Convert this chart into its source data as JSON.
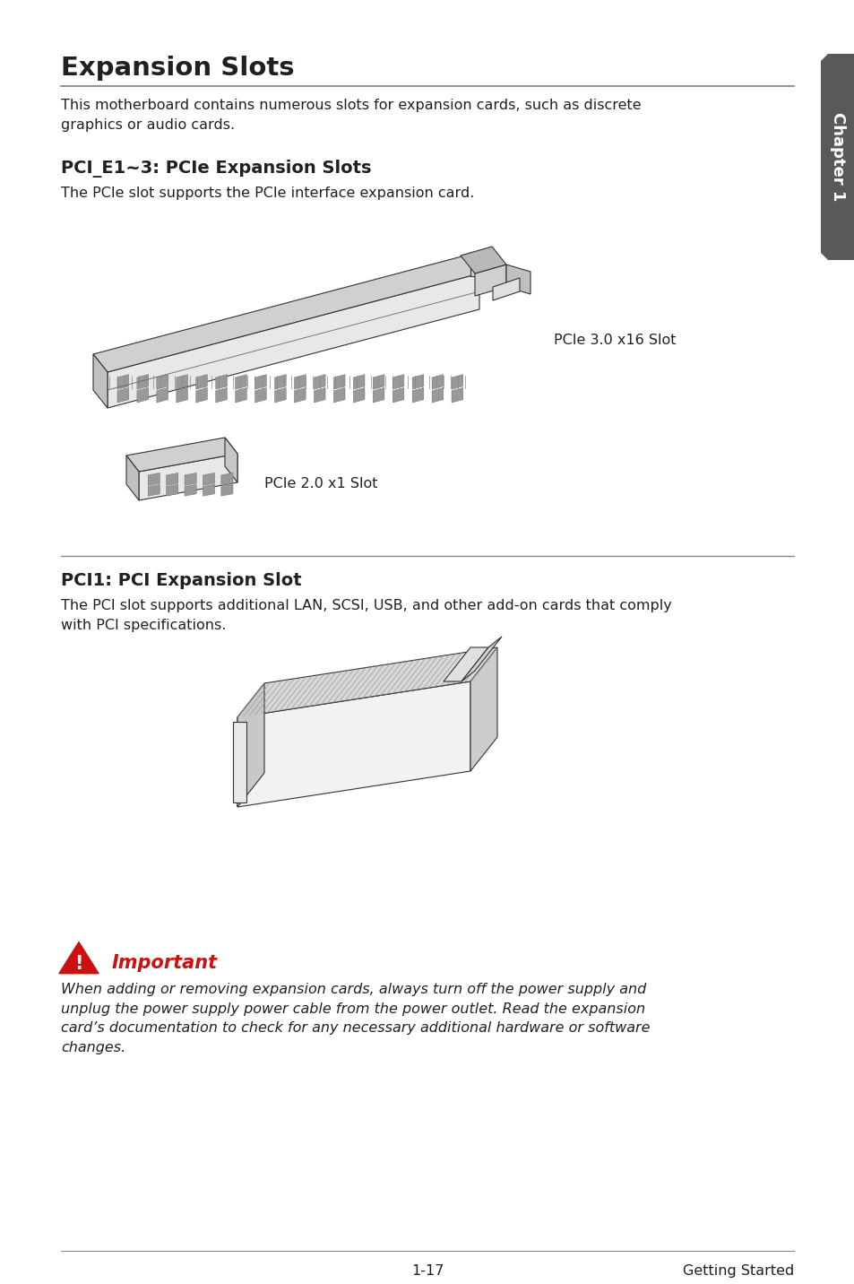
{
  "title": "Expansion Slots",
  "title_sub": "This motherboard contains numerous slots for expansion cards, such as discrete\ngraphics or audio cards.",
  "section1_title": "PCI_E1~3: PCIe Expansion Slots",
  "section1_sub": "The PCIe slot supports the PCIe interface expansion card.",
  "pcie_label1": "PCIe 3.0 x16 Slot",
  "pcie_label2": "PCIe 2.0 x1 Slot",
  "section2_title": "PCI1: PCI Expansion Slot",
  "section2_sub": "The PCI slot supports additional LAN, SCSI, USB, and other add-on cards that comply\nwith PCI specifications.",
  "important_label": "Important",
  "important_text": "When adding or removing expansion cards, always turn off the power supply and\nunplug the power supply power cable from the power outlet. Read the expansion\ncard’s documentation to check for any necessary additional hardware or software\nchanges.",
  "chapter_label": "Chapter 1",
  "footer_page": "1-17",
  "footer_text": "Getting Started",
  "bg_color": "#ffffff",
  "text_color": "#231f20",
  "title_color": "#231f20",
  "section_title_color": "#231f20",
  "line_color": "#888888",
  "chapter_tab_color": "#58595b",
  "chapter_text_color": "#ffffff",
  "slot_edge": "#333333",
  "slot_face_light": "#f0f0f0",
  "slot_face_mid": "#d8d8d8",
  "slot_face_dark": "#b0b0b0"
}
